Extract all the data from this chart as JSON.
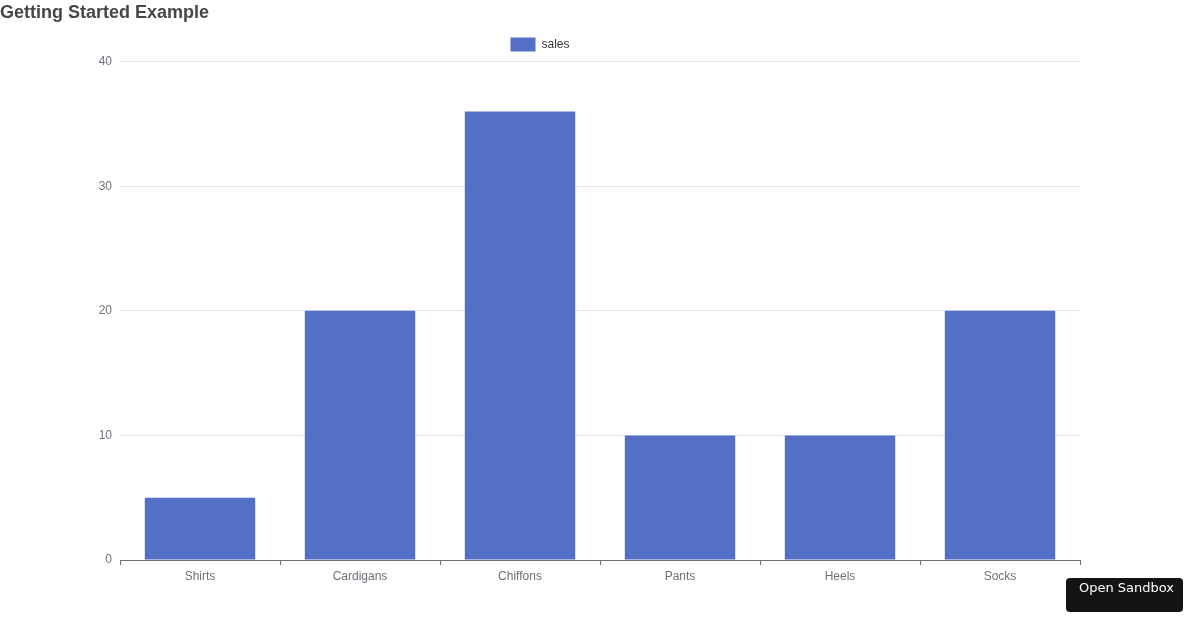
{
  "chart_data": {
    "type": "bar",
    "title": "Getting Started Example",
    "categories": [
      "Shirts",
      "Cardigans",
      "Chiffons",
      "Pants",
      "Heels",
      "Socks"
    ],
    "series": [
      {
        "name": "sales",
        "color": "#5470c6",
        "values": [
          5,
          20,
          36,
          10,
          10,
          20
        ]
      }
    ],
    "ylim": [
      0,
      40
    ],
    "yticks": [
      0,
      10,
      20,
      30,
      40
    ],
    "grid": "y",
    "legend": "top",
    "annotations": [
      "Open Sandbox"
    ]
  }
}
